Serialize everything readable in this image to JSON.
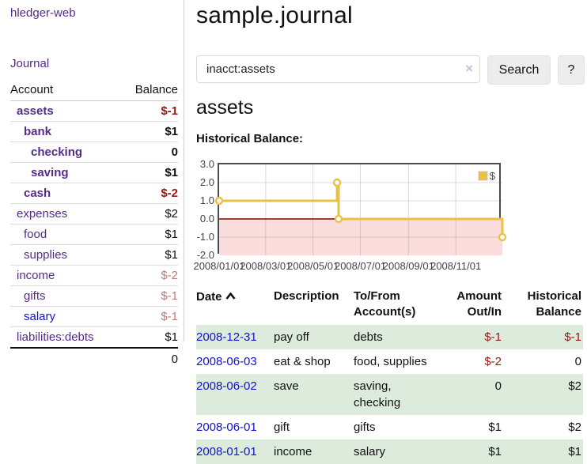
{
  "colors": {
    "link_purple": "#542c86",
    "link_blue": "#1212cc",
    "negative": "#991717",
    "negative_muted": "#bd7b78",
    "row_green": "#dcebdb"
  },
  "sidebar": {
    "app_title": "hledger-web",
    "nav_journal": "Journal",
    "columns": {
      "account": "Account",
      "balance": "Balance"
    },
    "accounts": [
      {
        "name": "assets",
        "depth": 1,
        "bold": true,
        "balance": "$-1",
        "balance_class": "neg"
      },
      {
        "name": "bank",
        "depth": 2,
        "bold": true,
        "balance": "$1",
        "balance_class": "pos"
      },
      {
        "name": "checking",
        "depth": 3,
        "bold": true,
        "balance": "0",
        "balance_class": "pos"
      },
      {
        "name": "saving",
        "depth": 3,
        "bold": true,
        "balance": "$1",
        "balance_class": "pos"
      },
      {
        "name": "cash",
        "depth": 2,
        "bold": true,
        "balance": "$-2",
        "balance_class": "neg"
      },
      {
        "name": "expenses",
        "depth": 1,
        "bold": false,
        "balance": "$2",
        "balance_class": "pos"
      },
      {
        "name": "food",
        "depth": 2,
        "bold": false,
        "balance": "$1",
        "balance_class": "pos"
      },
      {
        "name": "supplies",
        "depth": 2,
        "bold": false,
        "balance": "$1",
        "balance_class": "pos"
      },
      {
        "name": "income",
        "depth": 1,
        "bold": false,
        "balance": "$-2",
        "balance_class": "neg-muted"
      },
      {
        "name": "gifts",
        "depth": 2,
        "bold": false,
        "balance": "$-1",
        "balance_class": "neg-muted"
      },
      {
        "name": "salary",
        "depth": 2,
        "bold": false,
        "balance": "$-1",
        "balance_class": "neg-muted",
        "link_color": "blue"
      },
      {
        "name": "liabilities:debts",
        "depth": 1,
        "bold": false,
        "balance": "$1",
        "balance_class": "pos"
      }
    ],
    "total": "0"
  },
  "header": {
    "title": "sample.journal"
  },
  "search": {
    "value": "inacct:assets",
    "clear_label": "×",
    "button_label": "Search",
    "help_label": "?"
  },
  "account_page": {
    "heading": "assets",
    "chart_title": "Historical Balance:"
  },
  "chart_data": {
    "type": "line",
    "step": true,
    "title": "Historical Balance",
    "series": [
      {
        "name": "$",
        "color": "#e9c144",
        "points": [
          {
            "date": "2008-01-01",
            "value": 1
          },
          {
            "date": "2008-06-01",
            "value": 2
          },
          {
            "date": "2008-06-03",
            "value": 0
          },
          {
            "date": "2008-12-31",
            "value": -1
          }
        ]
      }
    ],
    "x_range": [
      "2008-01-01",
      "2008-12-31"
    ],
    "y_range": [
      -2,
      3
    ],
    "y_ticks": [
      3.0,
      2.0,
      1.0,
      0.0,
      -1.0,
      -2.0
    ],
    "x_ticks": [
      {
        "date": "2008-01-01",
        "label": "2008/01/01"
      },
      {
        "date": "2008-03-01",
        "label": "2008/03/01"
      },
      {
        "date": "2008-05-01",
        "label": "2008/05/01"
      },
      {
        "date": "2008-07-01",
        "label": "2008/07/01"
      },
      {
        "date": "2008-09-01",
        "label": "2008/09/01"
      },
      {
        "date": "2008-11-01",
        "label": "2008/11/01"
      }
    ],
    "grid": true,
    "negative_fill": "#fbdddd",
    "zero_line_color": "#8b0000",
    "legend": {
      "label": "$",
      "position": "top-right"
    }
  },
  "transactions": {
    "headers": {
      "date": "Date",
      "description": "Description",
      "accounts": "To/From Account(s)",
      "amount": "Amount Out/In",
      "balance": "Historical Balance"
    },
    "sort": {
      "column": "Date",
      "direction": "asc"
    },
    "rows": [
      {
        "date": "2008-12-31",
        "description": "pay off",
        "accounts": "debts",
        "amount": "$-1",
        "amount_negative": true,
        "balance": "$-1",
        "balance_negative": true
      },
      {
        "date": "2008-06-03",
        "description": "eat & shop",
        "accounts": "food, supplies",
        "amount": "$-2",
        "amount_negative": true,
        "balance": "0",
        "balance_negative": false
      },
      {
        "date": "2008-06-02",
        "description": "save",
        "accounts": "saving, checking",
        "amount": "0",
        "amount_negative": false,
        "balance": "$2",
        "balance_negative": false
      },
      {
        "date": "2008-06-01",
        "description": "gift",
        "accounts": "gifts",
        "amount": "$1",
        "amount_negative": false,
        "balance": "$2",
        "balance_negative": false
      },
      {
        "date": "2008-01-01",
        "description": "income",
        "accounts": "salary",
        "amount": "$1",
        "amount_negative": false,
        "balance": "$1",
        "balance_negative": false
      }
    ]
  }
}
